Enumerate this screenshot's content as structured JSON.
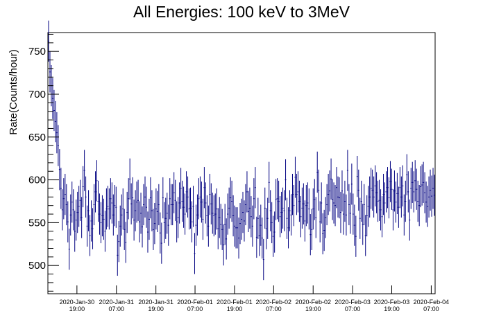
{
  "chart_data": {
    "type": "scatter",
    "title": "All Energies:  100 keV to 3MeV",
    "xlabel": "",
    "ylabel": "Rate(Counts/hour)",
    "ylim": [
      467,
      772
    ],
    "yticks": [
      500,
      550,
      600,
      650,
      700,
      750
    ],
    "xlim": [
      0,
      1
    ],
    "xticks": [
      {
        "x": 0.075,
        "line1": "2020-Jan-30",
        "line2": "19:00"
      },
      {
        "x": 0.177,
        "line1": "2020-Jan-31",
        "line2": "07:00"
      },
      {
        "x": 0.279,
        "line1": "2020-Jan-31",
        "line2": "19:00"
      },
      {
        "x": 0.38,
        "line1": "2020-Feb-01",
        "line2": "07:00"
      },
      {
        "x": 0.482,
        "line1": "2020-Feb-01",
        "line2": "19:00"
      },
      {
        "x": 0.583,
        "line1": "2020-Feb-02",
        "line2": "07:00"
      },
      {
        "x": 0.685,
        "line1": "2020-Feb-02",
        "line2": "19:00"
      },
      {
        "x": 0.787,
        "line1": "2020-Feb-03",
        "line2": "07:00"
      },
      {
        "x": 0.888,
        "line1": "2020-Feb-03",
        "line2": "19:00"
      },
      {
        "x": 0.99,
        "line1": "2020-Feb-04",
        "line2": "07:00"
      }
    ],
    "series": [
      {
        "color": "#000080",
        "y": [
          762,
          726,
          710,
          695,
          681,
          668,
          655,
          640,
          612,
          590,
          565,
          578,
          583,
          571,
          551,
          519,
          559,
          574,
          565,
          540,
          553,
          562,
          569,
          576,
          556,
          592,
          611,
          580,
          546,
          564,
          535,
          552,
          543,
          571,
          586,
          599,
          575,
          560,
          550,
          558,
          554,
          540,
          566,
          569,
          566,
          578,
          573,
          559,
          570,
          568,
          512,
          528,
          546,
          559,
          566,
          542,
          527,
          562,
          578,
          601,
          572,
          579,
          553,
          564,
          574,
          576,
          551,
          561,
          545,
          571,
          580,
          568,
          539,
          554,
          579,
          564,
          542,
          549,
          566,
          563,
          571,
          538,
          526,
          579,
          550,
          555,
          561,
          547,
          578,
          571,
          571,
          585,
          576,
          551,
          556,
          573,
          590,
          575,
          568,
          560,
          586,
          580,
          566,
          567,
          551,
          569,
          514,
          547,
          559,
          578,
          580,
          574,
          554,
          591,
          573,
          558,
          546,
          583,
          572,
          561,
          558,
          560,
          566,
          543,
          556,
          548,
          542,
          524,
          548,
          531,
          560,
          567,
          579,
          575,
          558,
          546,
          544,
          544,
          532,
          549,
          554,
          562,
          552,
          571,
          586,
          563,
          567,
          557,
          546,
          578,
          591,
          533,
          555,
          535,
          547,
          532,
          507,
          567,
          543,
          555,
          597,
          564,
          550,
          534,
          539,
          577,
          578,
          575,
          557,
          562,
          567,
          564,
          600,
          555,
          544,
          564,
          559,
          583,
          570,
          603,
          583,
          586,
          575,
          557,
          567,
          572,
          552,
          570,
          573,
          566,
          536,
          542,
          566,
          577,
          556,
          609,
          588,
          551,
          573,
          537,
          541,
          556,
          571,
          583,
          587,
          601,
          577,
          573,
          570,
          591,
          580,
          579,
          562,
          587,
          560,
          575,
          559,
          611,
          571,
          561,
          595,
          560,
          547,
          534,
          604,
          588,
          555,
          575,
          548,
          571,
          535,
          558,
          569,
          580,
          590,
          588,
          580,
          593,
          585,
          575,
          576,
          565,
          557,
          583,
          573,
          586,
          591,
          579,
          598,
          589,
          565,
          587,
          574,
          584,
          568,
          591,
          580,
          593,
          559,
          575,
          606,
          586,
          553,
          590,
          597,
          586,
          599,
          589,
          575,
          570,
          592,
          594,
          597,
          585,
          574,
          569,
          580,
          588,
          581,
          590,
          582
        ],
        "err": 24
      }
    ]
  }
}
